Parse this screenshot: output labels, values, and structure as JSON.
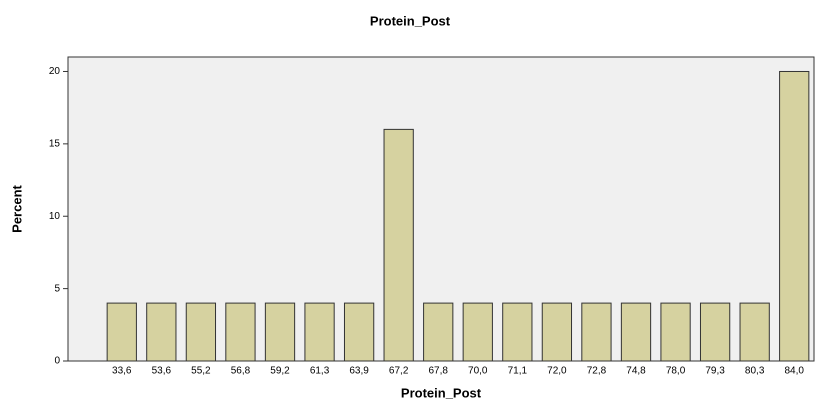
{
  "chart_data": {
    "type": "bar",
    "title": "Protein_Post",
    "x_label": "Protein_Post",
    "y_label": "Percent",
    "categories": [
      "33,6",
      "53,6",
      "55,2",
      "56,8",
      "59,2",
      "61,3",
      "63,9",
      "67,2",
      "67,8",
      "70,0",
      "71,1",
      "72,0",
      "72,8",
      "74,8",
      "78,0",
      "79,3",
      "80,3",
      "84,0"
    ],
    "values": [
      4,
      4,
      4,
      4,
      4,
      4,
      4,
      16,
      4,
      4,
      4,
      4,
      4,
      4,
      4,
      4,
      4,
      20
    ],
    "color": "#d6d2a0",
    "ylim": [
      0,
      21
    ],
    "yticks": [
      0,
      5,
      10,
      15,
      20
    ]
  }
}
